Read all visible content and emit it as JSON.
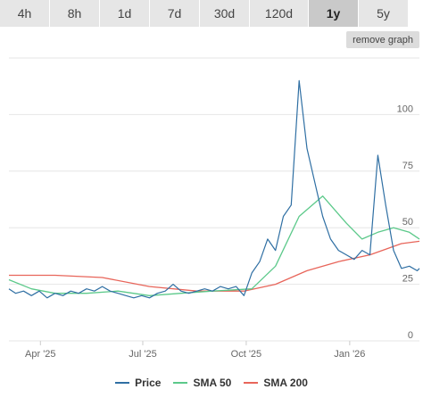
{
  "tabs": [
    {
      "label": "4h",
      "active": false
    },
    {
      "label": "8h",
      "active": false
    },
    {
      "label": "1d",
      "active": false
    },
    {
      "label": "7d",
      "active": false
    },
    {
      "label": "30d",
      "active": false
    },
    {
      "label": "120d",
      "active": false
    },
    {
      "label": "1y",
      "active": true
    },
    {
      "label": "5y",
      "active": false
    }
  ],
  "remove_button": "remove graph",
  "colors": {
    "price": "#2f6fa3",
    "sma50": "#5cc98a",
    "sma200": "#e8655a",
    "grid": "#e6e6e6"
  },
  "chart_data": {
    "type": "line",
    "x_ticks": [
      "Apr '25",
      "Jul '25",
      "Oct '25",
      "Jan '26"
    ],
    "y_ticks": [
      0,
      25,
      50,
      75,
      100
    ],
    "ylim": [
      0,
      125
    ],
    "x_range": [
      "2025-03-04",
      "2026-03-04"
    ],
    "grid": true,
    "legend_placement": "bottom",
    "series": [
      {
        "name": "Price",
        "color": "#2f6fa3",
        "points": [
          [
            "2025-03-04",
            23
          ],
          [
            "2025-03-10",
            21
          ],
          [
            "2025-03-17",
            22
          ],
          [
            "2025-03-24",
            20
          ],
          [
            "2025-03-31",
            22
          ],
          [
            "2025-04-07",
            19
          ],
          [
            "2025-04-14",
            21
          ],
          [
            "2025-04-21",
            20
          ],
          [
            "2025-04-28",
            22
          ],
          [
            "2025-05-05",
            21
          ],
          [
            "2025-05-12",
            23
          ],
          [
            "2025-05-19",
            22
          ],
          [
            "2025-05-26",
            24
          ],
          [
            "2025-06-02",
            22
          ],
          [
            "2025-06-09",
            21
          ],
          [
            "2025-06-16",
            20
          ],
          [
            "2025-06-23",
            19
          ],
          [
            "2025-06-30",
            20
          ],
          [
            "2025-07-07",
            19
          ],
          [
            "2025-07-14",
            21
          ],
          [
            "2025-07-21",
            22
          ],
          [
            "2025-07-28",
            25
          ],
          [
            "2025-08-04",
            22
          ],
          [
            "2025-08-11",
            21
          ],
          [
            "2025-08-18",
            22
          ],
          [
            "2025-08-25",
            23
          ],
          [
            "2025-09-01",
            22
          ],
          [
            "2025-09-08",
            24
          ],
          [
            "2025-09-15",
            23
          ],
          [
            "2025-09-22",
            24
          ],
          [
            "2025-09-29",
            20
          ],
          [
            "2025-10-06",
            30
          ],
          [
            "2025-10-13",
            35
          ],
          [
            "2025-10-20",
            45
          ],
          [
            "2025-10-27",
            40
          ],
          [
            "2025-11-03",
            55
          ],
          [
            "2025-11-10",
            60
          ],
          [
            "2025-11-17",
            115
          ],
          [
            "2025-11-24",
            85
          ],
          [
            "2025-12-01",
            70
          ],
          [
            "2025-12-08",
            55
          ],
          [
            "2025-12-15",
            45
          ],
          [
            "2025-12-22",
            40
          ],
          [
            "2025-12-29",
            38
          ],
          [
            "2026-01-05",
            36
          ],
          [
            "2026-01-12",
            40
          ],
          [
            "2026-01-19",
            38
          ],
          [
            "2026-01-26",
            82
          ],
          [
            "2026-02-02",
            60
          ],
          [
            "2026-02-09",
            40
          ],
          [
            "2026-02-16",
            32
          ],
          [
            "2026-02-23",
            33
          ],
          [
            "2026-03-02",
            31
          ],
          [
            "2026-03-04",
            32
          ]
        ]
      },
      {
        "name": "SMA 50",
        "color": "#5cc98a",
        "points": [
          [
            "2025-03-04",
            27
          ],
          [
            "2025-03-24",
            23
          ],
          [
            "2025-04-14",
            21
          ],
          [
            "2025-05-12",
            21
          ],
          [
            "2025-06-09",
            22
          ],
          [
            "2025-07-07",
            20
          ],
          [
            "2025-08-04",
            21
          ],
          [
            "2025-09-01",
            22
          ],
          [
            "2025-10-06",
            23
          ],
          [
            "2025-10-27",
            33
          ],
          [
            "2025-11-17",
            55
          ],
          [
            "2025-12-08",
            64
          ],
          [
            "2025-12-29",
            52
          ],
          [
            "2026-01-12",
            45
          ],
          [
            "2026-01-26",
            48
          ],
          [
            "2026-02-09",
            50
          ],
          [
            "2026-02-23",
            48
          ],
          [
            "2026-03-04",
            45
          ]
        ]
      },
      {
        "name": "SMA 200",
        "color": "#e8655a",
        "points": [
          [
            "2025-03-04",
            29
          ],
          [
            "2025-04-14",
            29
          ],
          [
            "2025-05-26",
            28
          ],
          [
            "2025-07-07",
            24
          ],
          [
            "2025-08-18",
            22
          ],
          [
            "2025-09-29",
            22
          ],
          [
            "2025-10-27",
            25
          ],
          [
            "2025-11-24",
            31
          ],
          [
            "2025-12-22",
            35
          ],
          [
            "2026-01-19",
            38
          ],
          [
            "2026-02-16",
            43
          ],
          [
            "2026-03-04",
            44
          ]
        ]
      }
    ]
  }
}
